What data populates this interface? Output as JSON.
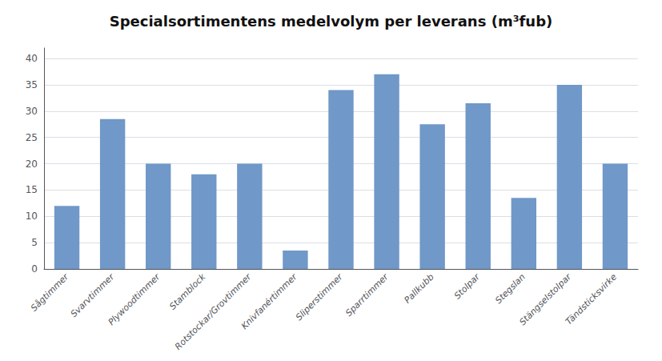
{
  "chart_data": {
    "type": "bar",
    "title": "Specialsortimentens medelvolym per leverans (m³fub)",
    "categories": [
      "Sågtimmer",
      "Svarvtimmer",
      "Plywoodtimmer",
      "Stamblock",
      "Rotstockar/Grovtimmer",
      "Knivfanértimmer",
      "Sliperstimmer",
      "Sparrtimmer",
      "Pallkubb",
      "Stolpar",
      "Stegslan",
      "Stängselstolpar",
      "Tändsticksvirke"
    ],
    "values": [
      12,
      28.5,
      20,
      18,
      20,
      3.5,
      34,
      37,
      27.5,
      31.5,
      13.5,
      35,
      20
    ],
    "color": "#7098c8",
    "ylim": [
      0,
      42
    ],
    "yticks": [
      0,
      5,
      10,
      15,
      20,
      25,
      30,
      35,
      40
    ],
    "grid": true
  }
}
